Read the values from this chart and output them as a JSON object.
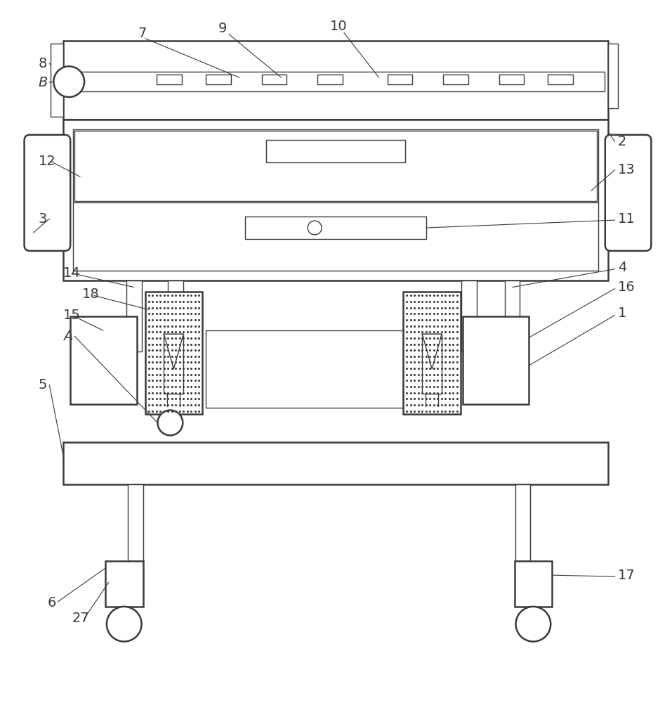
{
  "bg_color": "#ffffff",
  "lc": "#3a3a3a",
  "lw_main": 1.8,
  "lw_thin": 1.0,
  "lw_label": 0.8,
  "fig_w": 9.57,
  "fig_h": 10.0,
  "dpi": 100
}
